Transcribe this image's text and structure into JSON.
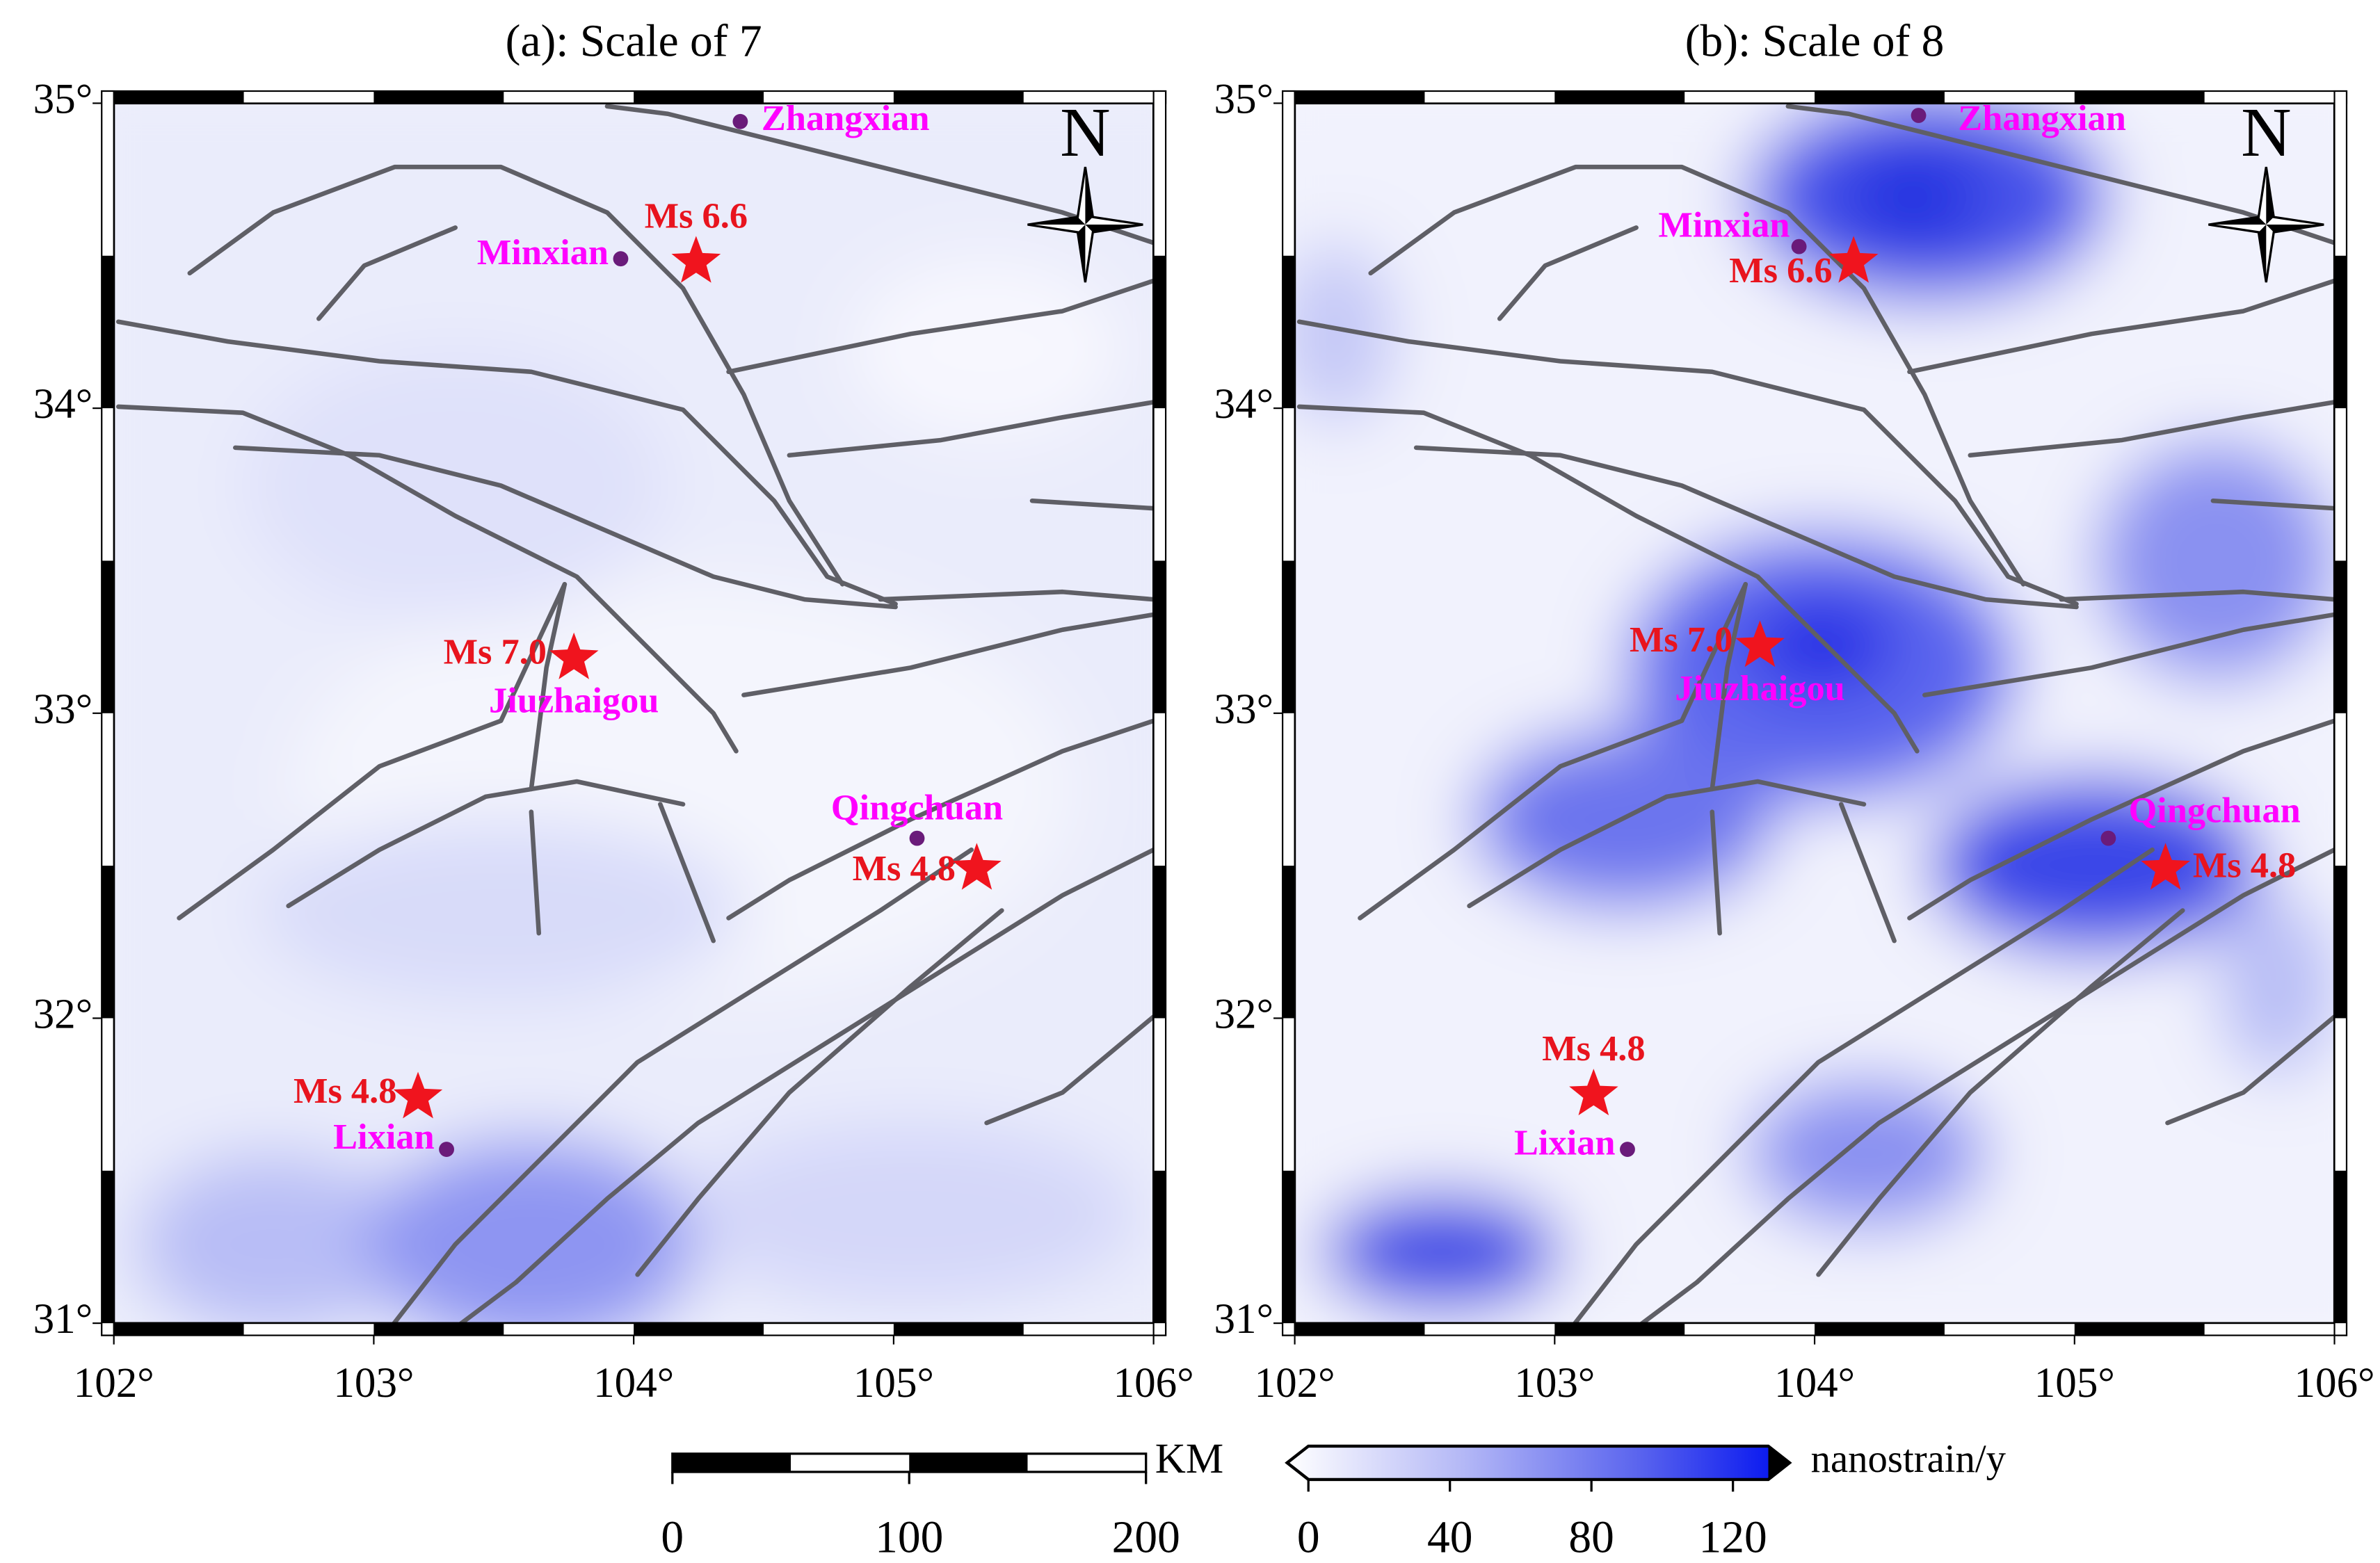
{
  "panels": [
    {
      "title": "(a): Scale of 7",
      "north": "N",
      "xlim": [
        102,
        106
      ],
      "ylim": [
        31,
        35
      ],
      "xticks": [
        {
          "value": 102,
          "label": "102°"
        },
        {
          "value": 103,
          "label": "103°"
        },
        {
          "value": 104,
          "label": "104°"
        },
        {
          "value": 105,
          "label": "105°"
        },
        {
          "value": 106,
          "label": "106°"
        }
      ],
      "yticks": [
        {
          "value": 31,
          "label": "31°"
        },
        {
          "value": 32,
          "label": "32°"
        },
        {
          "value": 33,
          "label": "33°"
        },
        {
          "value": 34,
          "label": "34°"
        },
        {
          "value": 35,
          "label": "35°"
        }
      ],
      "towns": [
        {
          "label": "Zhangxian",
          "lon": 104.41,
          "lat": 34.94
        },
        {
          "label": "Minxian",
          "lon": 103.95,
          "lat": 34.49
        },
        {
          "label": "Jiuzhaigou",
          "lon": 103.77,
          "lat": 33.18
        },
        {
          "label": "Qingchuan",
          "lon": 105.09,
          "lat": 32.59
        },
        {
          "label": "Lixian",
          "lon": 103.28,
          "lat": 31.57
        }
      ],
      "earthquakes": [
        {
          "label": "Ms 6.6",
          "lon": 104.24,
          "lat": 34.48
        },
        {
          "label": "Ms 7.0",
          "lon": 103.77,
          "lat": 33.18
        },
        {
          "label": "Ms 4.8",
          "lon": 105.32,
          "lat": 32.49
        },
        {
          "label": "Ms 4.8",
          "lon": 103.17,
          "lat": 31.74
        }
      ]
    },
    {
      "title": "(b): Scale of 8",
      "north": "N",
      "xlim": [
        102,
        106
      ],
      "ylim": [
        31,
        35
      ],
      "xticks": [
        {
          "value": 102,
          "label": "102°"
        },
        {
          "value": 103,
          "label": "103°"
        },
        {
          "value": 104,
          "label": "104°"
        },
        {
          "value": 105,
          "label": "105°"
        },
        {
          "value": 106,
          "label": "106°"
        }
      ],
      "yticks": [
        {
          "value": 31,
          "label": "31°"
        },
        {
          "value": 32,
          "label": "32°"
        },
        {
          "value": 33,
          "label": "33°"
        },
        {
          "value": 34,
          "label": "34°"
        },
        {
          "value": 35,
          "label": "35°"
        }
      ],
      "towns": [
        {
          "label": "Zhangxian",
          "lon": 104.4,
          "lat": 34.96
        },
        {
          "label": "Minxian",
          "lon": 103.94,
          "lat": 34.53
        },
        {
          "label": "Jiuzhaigou",
          "lon": 103.79,
          "lat": 33.22
        },
        {
          "label": "Qingchuan",
          "lon": 105.13,
          "lat": 32.59
        },
        {
          "label": "Lixian",
          "lon": 103.28,
          "lat": 31.57
        }
      ],
      "earthquakes": [
        {
          "label": "Ms 6.6",
          "lon": 104.15,
          "lat": 34.48
        },
        {
          "label": "Ms 7.0",
          "lon": 103.79,
          "lat": 33.22
        },
        {
          "label": "Ms 4.8",
          "lon": 105.35,
          "lat": 32.49
        },
        {
          "label": "Ms 4.8",
          "lon": 103.15,
          "lat": 31.75
        }
      ]
    }
  ],
  "scale_bar": {
    "unit": "KM",
    "lim": [
      0,
      200
    ],
    "ticks": [
      0,
      100,
      200
    ]
  },
  "colorbar": {
    "unit": "nanostrain/y",
    "lim": [
      0,
      130
    ],
    "ticks": [
      0,
      40,
      80,
      120
    ]
  }
}
